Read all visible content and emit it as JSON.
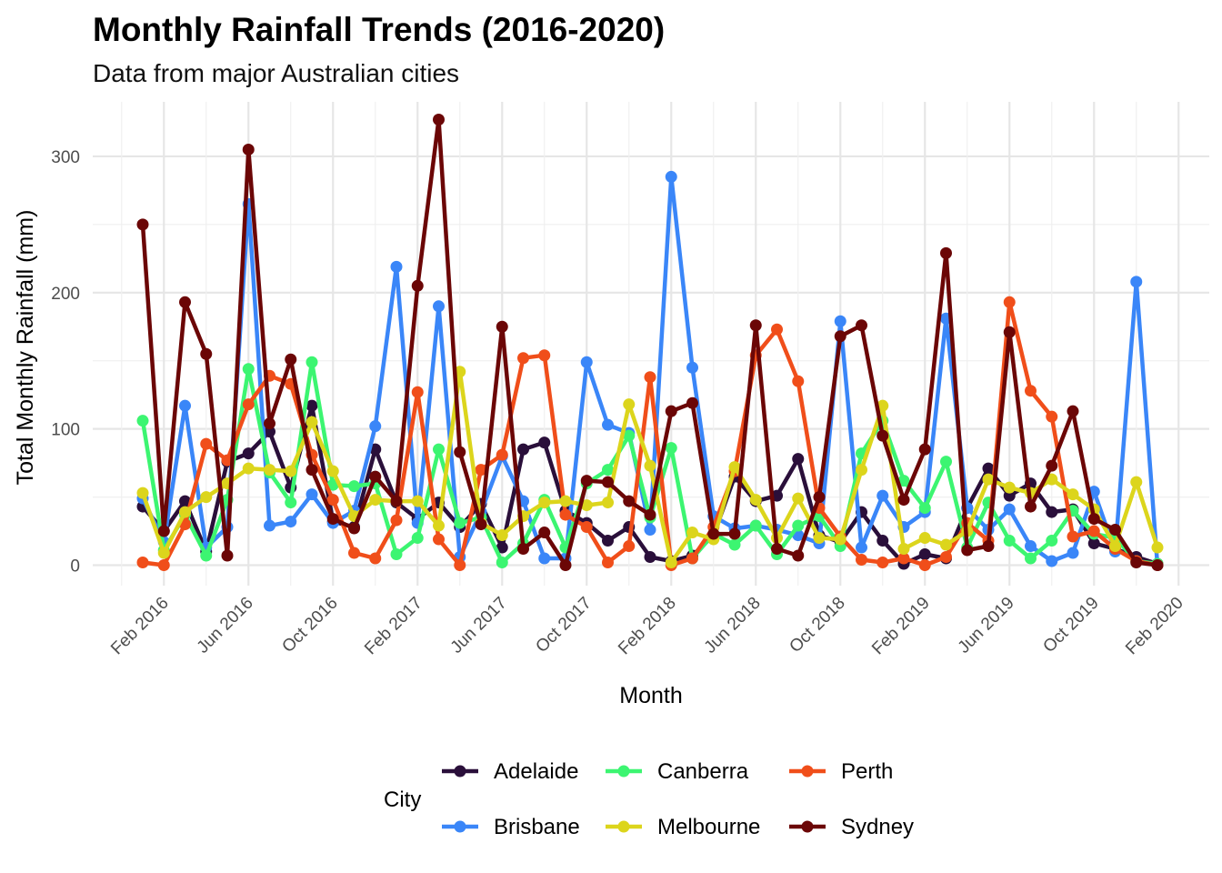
{
  "chart_data": {
    "type": "line",
    "title": "Monthly Rainfall Trends (2016-2020)",
    "subtitle": "Data from major Australian cities",
    "xlabel": "Month",
    "ylabel": "Total Monthly Rainfall (mm)",
    "ylim": [
      -15,
      340
    ],
    "yticks": [
      0,
      100,
      200,
      300
    ],
    "xticks": [
      "Feb 2016",
      "Jun 2016",
      "Oct 2016",
      "Feb 2017",
      "Jun 2017",
      "Oct 2017",
      "Feb 2018",
      "Jun 2018",
      "Oct 2018",
      "Feb 2019",
      "Jun 2019",
      "Oct 2019",
      "Feb 2020"
    ],
    "x": [
      "Jan 2016",
      "Feb 2016",
      "Mar 2016",
      "Apr 2016",
      "May 2016",
      "Jun 2016",
      "Jul 2016",
      "Aug 2016",
      "Sep 2016",
      "Oct 2016",
      "Nov 2016",
      "Dec 2016",
      "Jan 2017",
      "Feb 2017",
      "Mar 2017",
      "Apr 2017",
      "May 2017",
      "Jun 2017",
      "Jul 2017",
      "Aug 2017",
      "Sep 2017",
      "Oct 2017",
      "Nov 2017",
      "Dec 2017",
      "Jan 2018",
      "Feb 2018",
      "Mar 2018",
      "Apr 2018",
      "May 2018",
      "Jun 2018",
      "Jul 2018",
      "Aug 2018",
      "Sep 2018",
      "Oct 2018",
      "Nov 2018",
      "Dec 2018",
      "Jan 2019",
      "Feb 2019",
      "Mar 2019",
      "Apr 2019",
      "May 2019",
      "Jun 2019",
      "Jul 2019",
      "Aug 2019",
      "Sep 2019",
      "Oct 2019",
      "Nov 2019",
      "Dec 2019",
      "Jan 2020"
    ],
    "grid": true,
    "legend": {
      "title": "City",
      "position": "bottom"
    },
    "series": [
      {
        "name": "Adelaide",
        "color": "#2a0f3a",
        "values": [
          43,
          25,
          47,
          10,
          76,
          82,
          98,
          57,
          117,
          32,
          28,
          85,
          46,
          34,
          46,
          28,
          45,
          13,
          85,
          90,
          40,
          31,
          18,
          28,
          6,
          3,
          7,
          22,
          65,
          47,
          51,
          78,
          22,
          17,
          39,
          18,
          1,
          8,
          5,
          42,
          71,
          51,
          60,
          39,
          41,
          16,
          12,
          6,
          1
        ]
      },
      {
        "name": "Brisbane",
        "color": "#3a86f8",
        "values": [
          49,
          17,
          117,
          13,
          28,
          265,
          29,
          32,
          52,
          31,
          40,
          102,
          219,
          31,
          190,
          6,
          39,
          80,
          47,
          5,
          5,
          149,
          103,
          97,
          26,
          285,
          145,
          36,
          27,
          29,
          26,
          22,
          16,
          179,
          13,
          51,
          28,
          39,
          181,
          42,
          26,
          41,
          14,
          3,
          9,
          54,
          10,
          208,
          0
        ]
      },
      {
        "name": "Canberra",
        "color": "#3cf571",
        "values": [
          106,
          11,
          37,
          7,
          48,
          144,
          68,
          46,
          149,
          59,
          58,
          60,
          8,
          20,
          85,
          31,
          35,
          2,
          16,
          48,
          13,
          60,
          70,
          95,
          35,
          86,
          5,
          23,
          15,
          29,
          8,
          29,
          36,
          14,
          82,
          106,
          62,
          42,
          76,
          13,
          46,
          18,
          5,
          18,
          40,
          23,
          20,
          3,
          1
        ]
      },
      {
        "name": "Perth",
        "color": "#f04e1a",
        "values": [
          2,
          0,
          30,
          89,
          77,
          118,
          139,
          133,
          81,
          48,
          9,
          5,
          33,
          127,
          19,
          0,
          70,
          81,
          152,
          154,
          37,
          28,
          2,
          14,
          138,
          0,
          5,
          28,
          69,
          154,
          173,
          135,
          42,
          21,
          4,
          2,
          5,
          0,
          6,
          31,
          18,
          193,
          128,
          109,
          21,
          25,
          12,
          3,
          0
        ]
      },
      {
        "name": "Melbourne",
        "color": "#dcd51c",
        "values": [
          53,
          9,
          39,
          50,
          60,
          71,
          70,
          69,
          105,
          69,
          36,
          48,
          47,
          47,
          29,
          142,
          31,
          22,
          36,
          46,
          47,
          44,
          46,
          118,
          73,
          2,
          24,
          19,
          72,
          48,
          20,
          49,
          20,
          19,
          70,
          117,
          12,
          20,
          15,
          25,
          63,
          57,
          53,
          63,
          52,
          41,
          14,
          61,
          13
        ]
      },
      {
        "name": "Sydney",
        "color": "#6b0606",
        "values": [
          250,
          25,
          193,
          155,
          7,
          305,
          104,
          151,
          70,
          34,
          27,
          65,
          47,
          205,
          327,
          83,
          30,
          175,
          12,
          24,
          0,
          62,
          61,
          47,
          37,
          113,
          119,
          23,
          23,
          176,
          12,
          7,
          50,
          168,
          176,
          95,
          48,
          85,
          229,
          11,
          14,
          171,
          43,
          73,
          113,
          34,
          26,
          2,
          0
        ]
      }
    ]
  }
}
